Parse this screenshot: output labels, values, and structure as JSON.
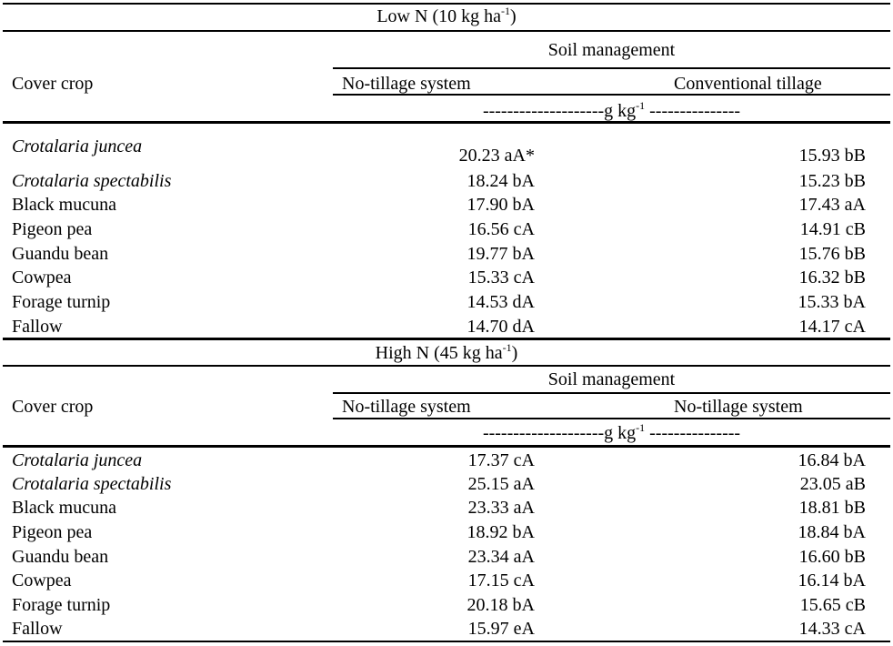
{
  "sections": [
    {
      "title_main": "Low N (10 kg ha",
      "title_sup": "-1",
      "title_end": ")",
      "cover_crop_header": "Cover crop",
      "soil_header": "Soil management",
      "col1_header": "No-tillage system",
      "col2_header": "Conventional tillage",
      "units_main": "--------------------g kg",
      "units_sup": "-1",
      "units_end": " ---------------",
      "rows": [
        {
          "crop": "Crotalaria juncea",
          "v1": "20.23 aA*",
          "v2": "15.93 bB"
        },
        {
          "crop": "Crotalaria spectabilis",
          "v1": "18.24 bA",
          "v2": "15.23 bB"
        },
        {
          "crop": "Black mucuna",
          "v1": "17.90 bA",
          "v2": "17.43 aA"
        },
        {
          "crop": "Pigeon pea",
          "v1": "16.56 cA",
          "v2": "14.91 cB"
        },
        {
          "crop": "Guandu bean",
          "v1": "19.77 bA",
          "v2": "15.76 bB"
        },
        {
          "crop": "Cowpea",
          "v1": "15.33 cA",
          "v2": "16.32 bB"
        },
        {
          "crop": "Forage turnip",
          "v1": "14.53 dA",
          "v2": "15.33 bA"
        },
        {
          "crop": "Fallow",
          "v1": "14.70 dA",
          "v2": "14.17 cA"
        }
      ]
    },
    {
      "title_main": "High N (45 kg ha",
      "title_sup": "-1",
      "title_end": ")",
      "cover_crop_header": "Cover crop",
      "soil_header": "Soil management",
      "col1_header": "No-tillage system",
      "col2_header": "No-tillage system",
      "units_main": "--------------------g kg",
      "units_sup": "-1",
      "units_end": " ---------------",
      "rows": [
        {
          "crop": "Crotalaria juncea",
          "v1": "17.37 cA",
          "v2": "16.84 bA"
        },
        {
          "crop": "Crotalaria spectabilis",
          "v1": "25.15 aA",
          "v2": "23.05 aB"
        },
        {
          "crop": "Black mucuna",
          "v1": "23.33 aA",
          "v2": "18.81 bB"
        },
        {
          "crop": "Pigeon pea",
          "v1": "18.92 bA",
          "v2": "18.84 bA"
        },
        {
          "crop": "Guandu bean",
          "v1": "23.34 aA",
          "v2": "16.60 bB"
        },
        {
          "crop": "Cowpea",
          "v1": "17.15 cA",
          "v2": "16.14 bA"
        },
        {
          "crop": "Forage turnip",
          "v1": "20.18 bA",
          "v2": "15.65 cB"
        },
        {
          "crop": "Fallow",
          "v1": "15.97 eA",
          "v2": "14.33 cA"
        }
      ]
    }
  ]
}
